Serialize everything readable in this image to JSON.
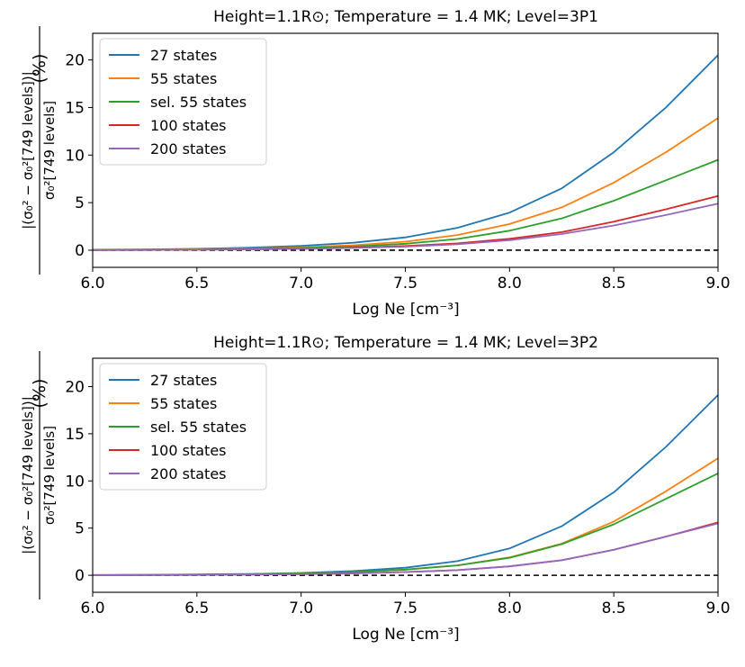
{
  "chart_data": [
    {
      "type": "line",
      "title": "Height=1.1R⊙; Temperature = 1.4 MK; Level=3P1",
      "xlabel": "Log Ne [cm⁻³]",
      "ylabel": "|(σ₀² − σ₀²[749 levels])| / σ₀²[749 levels] (%)",
      "ylabel_top": "|(σ₀² − σ₀²[749 levels])|",
      "ylabel_bottom": "σ₀²[749 levels]",
      "ylabel_unit": "(%)",
      "xlim": [
        6.0,
        9.0
      ],
      "ylim": [
        -1.8,
        22.8
      ],
      "xticks": [
        "6.0",
        "6.5",
        "7.0",
        "7.5",
        "8.0",
        "8.5",
        "9.0"
      ],
      "yticks": [
        "0",
        "5",
        "10",
        "15",
        "20"
      ],
      "reference_line": 0,
      "legend_position": "upper-left",
      "x": [
        6.0,
        6.25,
        6.5,
        6.75,
        7.0,
        7.25,
        7.5,
        7.75,
        8.0,
        8.25,
        8.5,
        8.75,
        9.0
      ],
      "series": [
        {
          "name": "27 states",
          "color": "#1f77b4",
          "values": [
            0.05,
            0.08,
            0.15,
            0.27,
            0.46,
            0.78,
            1.35,
            2.35,
            3.95,
            6.5,
            10.3,
            15.0,
            20.5
          ]
        },
        {
          "name": "55 states",
          "color": "#ff7f0e",
          "values": [
            0.04,
            0.06,
            0.1,
            0.18,
            0.3,
            0.52,
            0.9,
            1.6,
            2.75,
            4.5,
            7.1,
            10.3,
            13.9
          ]
        },
        {
          "name": "sel. 55 states",
          "color": "#2ca02c",
          "values": [
            0.03,
            0.05,
            0.08,
            0.14,
            0.23,
            0.39,
            0.68,
            1.18,
            2.05,
            3.35,
            5.2,
            7.35,
            9.5
          ]
        },
        {
          "name": "100 states",
          "color": "#d62728",
          "values": [
            0.02,
            0.03,
            0.05,
            0.09,
            0.15,
            0.26,
            0.44,
            0.72,
            1.2,
            1.9,
            3.0,
            4.3,
            5.7
          ]
        },
        {
          "name": "200 states",
          "color": "#9467bd",
          "values": [
            0.02,
            0.03,
            0.05,
            0.08,
            0.14,
            0.23,
            0.38,
            0.62,
            1.05,
            1.7,
            2.6,
            3.7,
            4.9
          ]
        }
      ]
    },
    {
      "type": "line",
      "title": "Height=1.1R⊙; Temperature = 1.4 MK; Level=3P2",
      "xlabel": "Log Ne [cm⁻³]",
      "ylabel": "|(σ₀² − σ₀²[749 levels])| / σ₀²[749 levels] (%)",
      "ylabel_top": "|(σ₀² − σ₀²[749 levels])|",
      "ylabel_bottom": "σ₀²[749 levels]",
      "ylabel_unit": "(%)",
      "xlim": [
        6.0,
        9.0
      ],
      "ylim": [
        -1.8,
        23.0
      ],
      "xticks": [
        "6.0",
        "6.5",
        "7.0",
        "7.5",
        "8.0",
        "8.5",
        "9.0"
      ],
      "yticks": [
        "0",
        "5",
        "10",
        "15",
        "20"
      ],
      "reference_line": 0,
      "legend_position": "upper-left",
      "x": [
        6.0,
        6.25,
        6.5,
        6.75,
        7.0,
        7.25,
        7.5,
        7.75,
        8.0,
        8.25,
        8.5,
        8.75,
        9.0
      ],
      "series": [
        {
          "name": "27 states",
          "color": "#1f77b4",
          "values": [
            0.03,
            0.05,
            0.09,
            0.15,
            0.25,
            0.45,
            0.8,
            1.5,
            2.85,
            5.2,
            8.8,
            13.6,
            19.1
          ]
        },
        {
          "name": "55 states",
          "color": "#ff7f0e",
          "values": [
            0.02,
            0.04,
            0.07,
            0.12,
            0.2,
            0.35,
            0.6,
            1.05,
            1.9,
            3.35,
            5.7,
            8.9,
            12.4
          ]
        },
        {
          "name": "sel. 55 states",
          "color": "#2ca02c",
          "values": [
            0.02,
            0.04,
            0.07,
            0.12,
            0.2,
            0.35,
            0.6,
            1.05,
            1.85,
            3.3,
            5.4,
            8.1,
            10.8
          ]
        },
        {
          "name": "100 states",
          "color": "#d62728",
          "values": [
            0.01,
            0.02,
            0.04,
            0.07,
            0.12,
            0.2,
            0.35,
            0.55,
            0.95,
            1.6,
            2.7,
            4.1,
            5.6
          ]
        },
        {
          "name": "200 states",
          "color": "#9467bd",
          "values": [
            0.01,
            0.02,
            0.04,
            0.07,
            0.12,
            0.2,
            0.35,
            0.55,
            0.95,
            1.6,
            2.7,
            4.1,
            5.5
          ]
        }
      ]
    }
  ]
}
